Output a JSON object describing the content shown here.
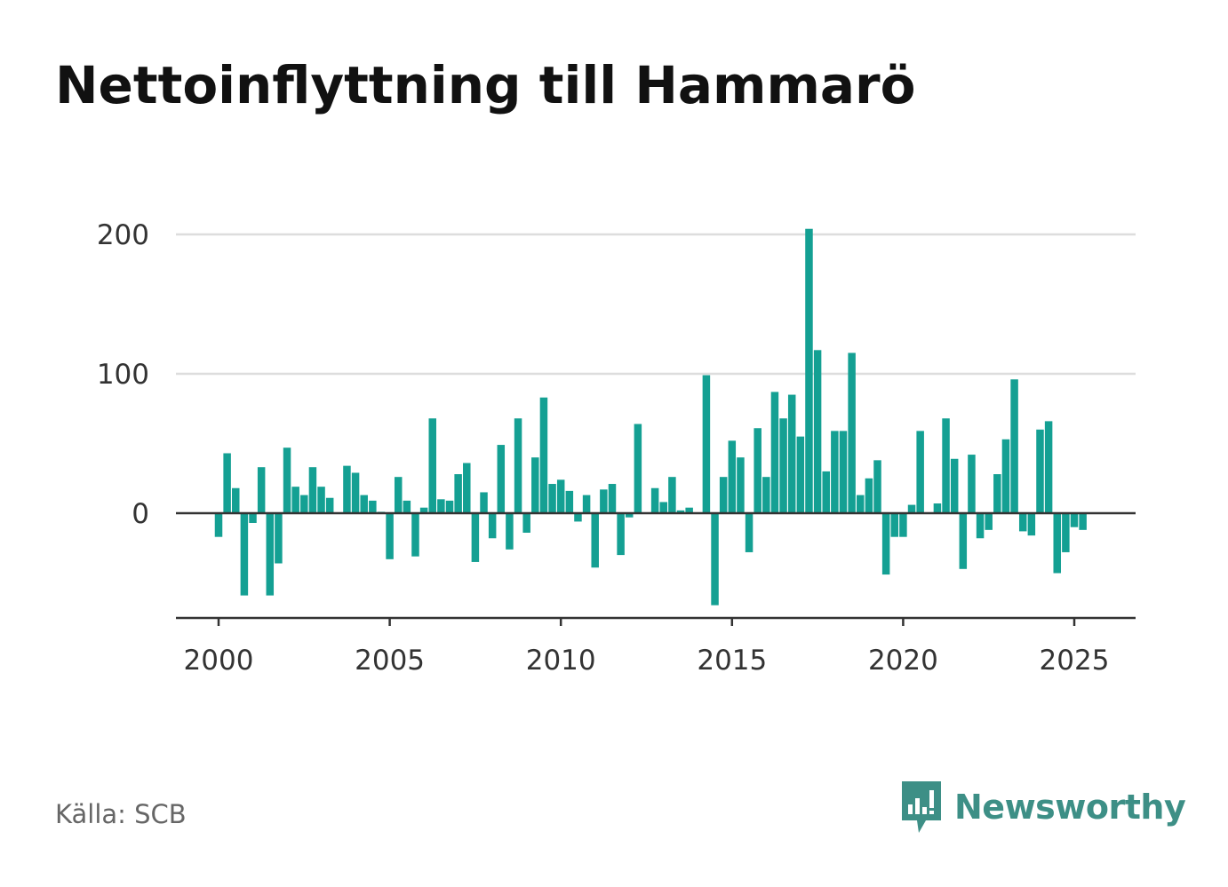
{
  "title": "Nettoinflyttning till Hammarö",
  "source": "Källa: SCB",
  "brand": {
    "name": "Newsworthy",
    "icon": "newsworthy-logo-icon",
    "color": "#3d8f86"
  },
  "chart_data": {
    "type": "bar",
    "title": "Nettoinflyttning till Hammarö",
    "xlabel": "",
    "ylabel": "",
    "bar_color": "#14a093",
    "grid": true,
    "ylim": [
      -75,
      205
    ],
    "xlim": [
      1999.75,
      2026.8
    ],
    "x_ticks": [
      2000,
      2005,
      2010,
      2015,
      2020,
      2025
    ],
    "x_tick_labels": [
      "2000",
      "2005",
      "2010",
      "2015",
      "2020",
      "2025"
    ],
    "y_ticks": [
      0,
      100,
      200
    ],
    "y_tick_labels": [
      "0",
      "100",
      "200"
    ],
    "categories": [
      "2000 Q1",
      "2000 Q2",
      "2000 Q3",
      "2000 Q4",
      "2001 Q1",
      "2001 Q2",
      "2001 Q3",
      "2001 Q4",
      "2002 Q1",
      "2002 Q2",
      "2002 Q3",
      "2002 Q4",
      "2003 Q1",
      "2003 Q2",
      "2003 Q3",
      "2003 Q4",
      "2004 Q1",
      "2004 Q2",
      "2004 Q3",
      "2004 Q4",
      "2005 Q1",
      "2005 Q2",
      "2005 Q3",
      "2005 Q4",
      "2006 Q1",
      "2006 Q2",
      "2006 Q3",
      "2006 Q4",
      "2007 Q1",
      "2007 Q2",
      "2007 Q3",
      "2007 Q4",
      "2008 Q1",
      "2008 Q2",
      "2008 Q3",
      "2008 Q4",
      "2009 Q1",
      "2009 Q2",
      "2009 Q3",
      "2009 Q4",
      "2010 Q1",
      "2010 Q2",
      "2010 Q3",
      "2010 Q4",
      "2011 Q1",
      "2011 Q2",
      "2011 Q3",
      "2011 Q4",
      "2012 Q1",
      "2012 Q2",
      "2012 Q3",
      "2012 Q4",
      "2013 Q1",
      "2013 Q2",
      "2013 Q3",
      "2013 Q4",
      "2014 Q1",
      "2014 Q2",
      "2014 Q3",
      "2014 Q4",
      "2015 Q1",
      "2015 Q2",
      "2015 Q3",
      "2015 Q4",
      "2016 Q1",
      "2016 Q2",
      "2016 Q3",
      "2016 Q4",
      "2017 Q1",
      "2017 Q2",
      "2017 Q3",
      "2017 Q4",
      "2018 Q1",
      "2018 Q2",
      "2018 Q3",
      "2018 Q4",
      "2019 Q1",
      "2019 Q2",
      "2019 Q3",
      "2019 Q4",
      "2020 Q1",
      "2020 Q2",
      "2020 Q3",
      "2020 Q4",
      "2021 Q1",
      "2021 Q2",
      "2021 Q3",
      "2021 Q4",
      "2022 Q1",
      "2022 Q2",
      "2022 Q3",
      "2022 Q4",
      "2023 Q1",
      "2023 Q2",
      "2023 Q3",
      "2023 Q4",
      "2024 Q1",
      "2024 Q2",
      "2024 Q3",
      "2024 Q4",
      "2025 Q1",
      "2025 Q2",
      "2025 Q3",
      "2025 Q4"
    ],
    "x": [
      2000.0,
      2000.25,
      2000.5,
      2000.75,
      2001.0,
      2001.25,
      2001.5,
      2001.75,
      2002.0,
      2002.25,
      2002.5,
      2002.75,
      2003.0,
      2003.25,
      2003.5,
      2003.75,
      2004.0,
      2004.25,
      2004.5,
      2004.75,
      2005.0,
      2005.25,
      2005.5,
      2005.75,
      2006.0,
      2006.25,
      2006.5,
      2006.75,
      2007.0,
      2007.25,
      2007.5,
      2007.75,
      2008.0,
      2008.25,
      2008.5,
      2008.75,
      2009.0,
      2009.25,
      2009.5,
      2009.75,
      2010.0,
      2010.25,
      2010.5,
      2010.75,
      2011.0,
      2011.25,
      2011.5,
      2011.75,
      2012.0,
      2012.25,
      2012.5,
      2012.75,
      2013.0,
      2013.25,
      2013.5,
      2013.75,
      2014.0,
      2014.25,
      2014.5,
      2014.75,
      2015.0,
      2015.25,
      2015.5,
      2015.75,
      2016.0,
      2016.25,
      2016.5,
      2016.75,
      2017.0,
      2017.25,
      2017.5,
      2017.75,
      2018.0,
      2018.25,
      2018.5,
      2018.75,
      2019.0,
      2019.25,
      2019.5,
      2019.75,
      2020.0,
      2020.25,
      2020.5,
      2020.75,
      2021.0,
      2021.25,
      2021.5,
      2021.75,
      2022.0,
      2022.25,
      2022.5,
      2022.75,
      2023.0,
      2023.25,
      2023.5,
      2023.75,
      2024.0,
      2024.25,
      2024.5,
      2024.75,
      2025.0,
      2025.25,
      2025.5,
      2025.75
    ],
    "values": [
      -17,
      43,
      18,
      -59,
      -7,
      33,
      -59,
      -36,
      47,
      19,
      13,
      33,
      19,
      11,
      0,
      34,
      29,
      13,
      9,
      1,
      -33,
      26,
      9,
      -31,
      4,
      68,
      10,
      9,
      28,
      36,
      -35,
      15,
      -18,
      49,
      -26,
      68,
      -14,
      40,
      83,
      21,
      24,
      16,
      -6,
      13,
      -39,
      17,
      21,
      -30,
      -3,
      64,
      0,
      18,
      8,
      26,
      2,
      4,
      0,
      99,
      -66,
      26,
      52,
      40,
      -28,
      61,
      26,
      87,
      68,
      85,
      55,
      204,
      117,
      30,
      59,
      59,
      115,
      13,
      25,
      38,
      -44,
      -17,
      -17,
      6,
      59,
      0,
      7,
      68,
      39,
      -40,
      42,
      -18,
      -12,
      28,
      53,
      96,
      -13,
      -16,
      60,
      66,
      -43,
      -28,
      -10,
      -12,
      null,
      null
    ]
  }
}
